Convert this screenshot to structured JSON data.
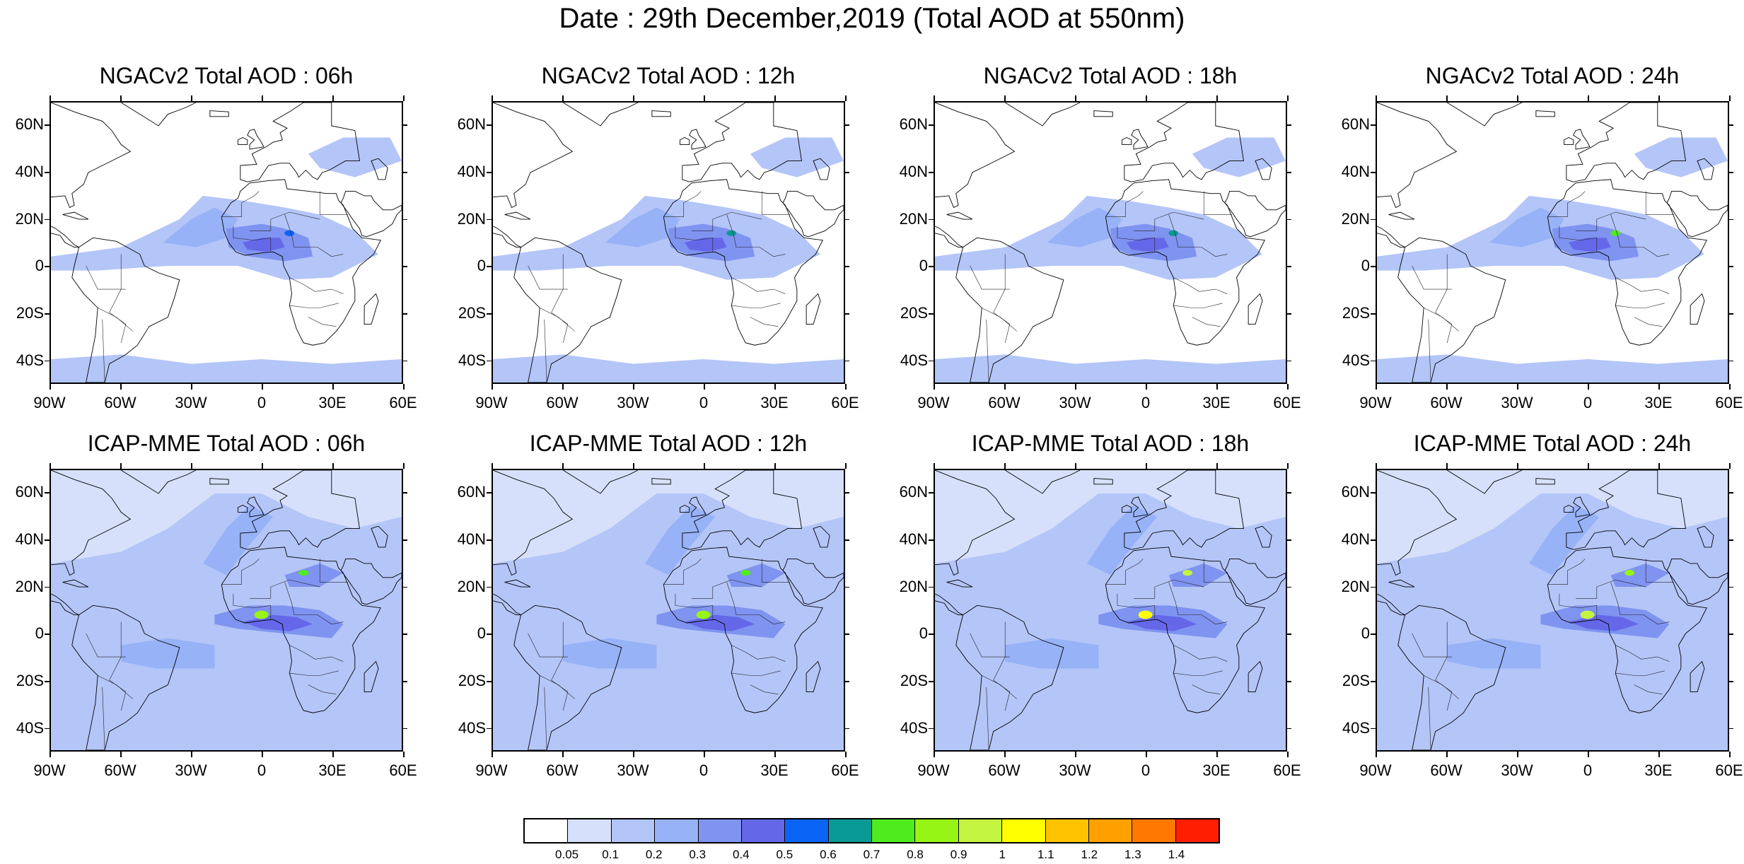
{
  "title": "Date : 29th December,2019 (Total AOD at 550nm)",
  "map_extent": {
    "lon_min": -90,
    "lon_max": 60,
    "lat_min": -50,
    "lat_max": 70
  },
  "lat_ticks": [
    "60N",
    "40N",
    "20N",
    "0",
    "20S",
    "40S"
  ],
  "lat_tick_values": [
    60,
    40,
    20,
    0,
    -20,
    -40
  ],
  "lon_ticks": [
    "90W",
    "60W",
    "30W",
    "0",
    "30E",
    "60E"
  ],
  "lon_tick_values": [
    -90,
    -60,
    -30,
    0,
    30,
    60
  ],
  "panels": [
    {
      "title": "NGACv2 Total AOD : 06h",
      "model": "NGACv2",
      "lead": "06h",
      "peak_class": 6
    },
    {
      "title": "NGACv2 Total AOD : 12h",
      "model": "NGACv2",
      "lead": "12h",
      "peak_class": 7
    },
    {
      "title": "NGACv2 Total AOD : 18h",
      "model": "NGACv2",
      "lead": "18h",
      "peak_class": 7
    },
    {
      "title": "NGACv2 Total AOD : 24h",
      "model": "NGACv2",
      "lead": "24h",
      "peak_class": 8
    },
    {
      "title": "ICAP-MME Total AOD : 06h",
      "model": "ICAP-MME",
      "lead": "06h",
      "peak_class": 9
    },
    {
      "title": "ICAP-MME Total AOD : 12h",
      "model": "ICAP-MME",
      "lead": "12h",
      "peak_class": 9
    },
    {
      "title": "ICAP-MME Total AOD : 18h",
      "model": "ICAP-MME",
      "lead": "18h",
      "peak_class": 11
    },
    {
      "title": "ICAP-MME Total AOD : 24h",
      "model": "ICAP-MME",
      "lead": "24h",
      "peak_class": 10
    }
  ],
  "colorbar": {
    "colors": [
      "#ffffff",
      "#d6e0fb",
      "#b4c5f8",
      "#97b2f7",
      "#7f93f0",
      "#6468e8",
      "#0a64f6",
      "#0a9a96",
      "#50eb1e",
      "#96f514",
      "#c3f541",
      "#ffff00",
      "#ffc300",
      "#ffa000",
      "#ff7800",
      "#ff1e00"
    ],
    "labels": [
      "0.05",
      "0.1",
      "0.2",
      "0.3",
      "0.4",
      "0.5",
      "0.6",
      "0.7",
      "0.8",
      "0.9",
      "1",
      "1.1",
      "1.2",
      "1.3",
      "1.4"
    ]
  }
}
